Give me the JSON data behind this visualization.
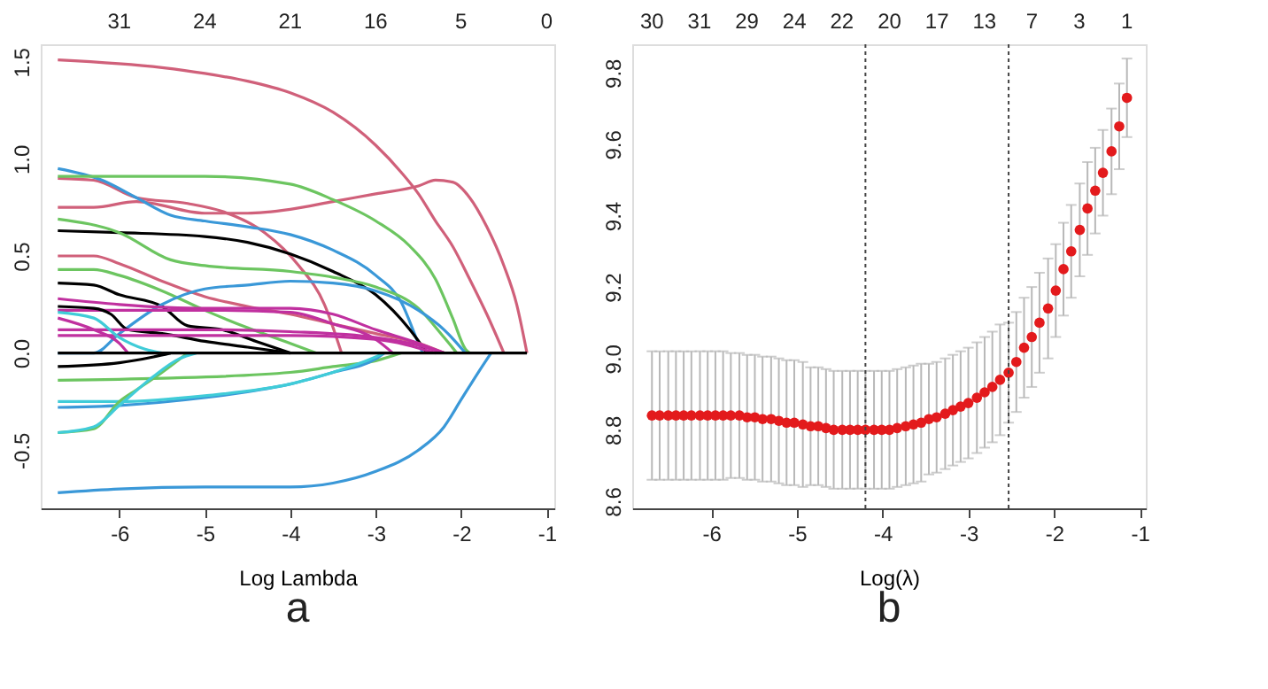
{
  "chart_data": [
    {
      "type": "line",
      "xlabel": "Log Lambda",
      "annotations": [
        "a",
        "31",
        "24",
        "21",
        "16",
        "5",
        "0"
      ],
      "xlim": [
        -6.92,
        -0.91
      ],
      "ylim": [
        -0.8,
        1.59
      ],
      "xticks": [
        -6,
        -5,
        -4,
        -3,
        -2,
        -1
      ],
      "yticks": [
        -0.5,
        {
          "value": 0,
          "label": "0.0"
        },
        0.5,
        {
          "value": 1,
          "label": "1.0"
        },
        1.5
      ],
      "grid": false,
      "line_style": "solid",
      "marker": "none",
      "series": [
        {
          "color": "#d0607a",
          "x": [
            -6.72,
            -5.5,
            -5,
            -4.5,
            -4,
            -3.5,
            -3,
            -2.7,
            -2.5,
            -2.3,
            -2.1,
            -1.9,
            -1.7,
            -1.5
          ],
          "values": [
            1.51,
            1.47,
            1.44,
            1.4,
            1.34,
            1.24,
            1.07,
            0.93,
            0.82,
            0.68,
            0.55,
            0.38,
            0.2,
            0
          ]
        },
        {
          "color": "#d0607a",
          "x": [
            -6.72,
            -6.3,
            -5.8,
            -5,
            -4.5,
            -4,
            -3.5,
            -3,
            -2.5,
            -2.3,
            -2.1,
            -1.9,
            -1.7,
            -1.5,
            -1.35,
            -1.23
          ],
          "values": [
            0.75,
            0.75,
            0.78,
            0.72,
            0.72,
            0.74,
            0.78,
            0.82,
            0.86,
            0.89,
            0.88,
            0.8,
            0.65,
            0.45,
            0.25,
            0
          ]
        },
        {
          "color": "#d0607a",
          "x": [
            -6.72,
            -6.3,
            -5.8,
            -5.2,
            -4.8,
            -4.3,
            -3.9,
            -3.6,
            -3.4
          ],
          "values": [
            0.9,
            0.89,
            0.8,
            0.77,
            0.73,
            0.62,
            0.45,
            0.25,
            0
          ]
        },
        {
          "color": "#3a98d8",
          "x": [
            -6.72,
            -6.2,
            -5.8,
            -5.4,
            -5,
            -4.5,
            -4,
            -3.5,
            -3,
            -2.7,
            -2.5,
            -2.45
          ],
          "values": [
            0.95,
            0.89,
            0.8,
            0.71,
            0.68,
            0.65,
            0.61,
            0.53,
            0.4,
            0.26,
            0.05,
            0
          ]
        },
        {
          "color": "#6cc560",
          "x": [
            -6.72,
            -6,
            -5,
            -4,
            -3.5,
            -3,
            -2.6,
            -2.3,
            -2.1,
            -1.95,
            -1.9
          ],
          "values": [
            0.91,
            0.91,
            0.91,
            0.87,
            0.79,
            0.68,
            0.55,
            0.38,
            0.18,
            0.02,
            0
          ]
        },
        {
          "color": "#000000",
          "x": [
            -6.72,
            -6,
            -5,
            -4.5,
            -4,
            -3.5,
            -3,
            -2.6,
            -2.4
          ],
          "values": [
            0.63,
            0.62,
            0.6,
            0.57,
            0.51,
            0.42,
            0.3,
            0.12,
            0
          ]
        },
        {
          "color": "#6cc560",
          "x": [
            -6.72,
            -6,
            -5.4,
            -5,
            -4,
            -3.5,
            -3,
            -2.5,
            -2.2,
            -2.05
          ],
          "values": [
            0.69,
            0.62,
            0.48,
            0.45,
            0.42,
            0.39,
            0.34,
            0.23,
            0.08,
            0
          ]
        },
        {
          "color": "#d0607a",
          "x": [
            -6.72,
            -6.3,
            -6,
            -5.5,
            -5,
            -4.5,
            -4,
            -3.5,
            -3,
            -2.5,
            -2.2
          ],
          "values": [
            0.5,
            0.5,
            0.46,
            0.37,
            0.29,
            0.24,
            0.2,
            0.15,
            0.1,
            0.05,
            0
          ]
        },
        {
          "color": "#6cc560",
          "x": [
            -6.72,
            -6.3,
            -6,
            -5.5,
            -5,
            -4.5,
            -4,
            -3.7
          ],
          "values": [
            0.43,
            0.43,
            0.4,
            0.32,
            0.22,
            0.13,
            0.05,
            0
          ]
        },
        {
          "color": "#000000",
          "x": [
            -6.72,
            -6.3,
            -6,
            -5.5,
            -5.2,
            -4.8,
            -4.4,
            -4
          ],
          "values": [
            0.36,
            0.35,
            0.3,
            0.24,
            0.14,
            0.12,
            0.06,
            0
          ]
        },
        {
          "color": "#3a98d8",
          "x": [
            -6.72,
            -6.3,
            -6,
            -5.5,
            -5,
            -4.5,
            -4,
            -3.5,
            -3,
            -2.5,
            -2.2,
            -1.95
          ],
          "values": [
            0,
            0,
            0.1,
            0.25,
            0.33,
            0.35,
            0.37,
            0.36,
            0.32,
            0.22,
            0.12,
            0
          ]
        },
        {
          "color": "#c0309f",
          "x": [
            -6.72,
            -6,
            -5,
            -4,
            -3.5,
            -3,
            -2.5,
            -2.2
          ],
          "values": [
            0.28,
            0.25,
            0.23,
            0.23,
            0.2,
            0.12,
            0.05,
            0
          ]
        },
        {
          "color": "#c0309f",
          "x": [
            -6.72,
            -5,
            -4,
            -3.5,
            -3,
            -2.8
          ],
          "values": [
            0.22,
            0.22,
            0.21,
            0.15,
            0.07,
            0
          ]
        },
        {
          "color": "#000000",
          "x": [
            -6.72,
            -6.3,
            -6.1,
            -5.9,
            -5.5,
            -5,
            -4.5,
            -4
          ],
          "values": [
            0.24,
            0.23,
            0.2,
            0.12,
            0.1,
            0.06,
            0.03,
            0
          ]
        },
        {
          "color": "#c0309f",
          "x": [
            -6.72,
            -5,
            -4,
            -3,
            -2.5,
            -2.2
          ],
          "values": [
            0.12,
            0.12,
            0.11,
            0.08,
            0.04,
            0
          ]
        },
        {
          "color": "#c0309f",
          "x": [
            -6.72,
            -4,
            -3,
            -2.3
          ],
          "values": [
            0.09,
            0.09,
            0.07,
            0
          ]
        },
        {
          "color": "#c0309f",
          "x": [
            -6.72,
            -6.3,
            -6,
            -5.9
          ],
          "values": [
            0.18,
            0.12,
            0.05,
            0
          ]
        },
        {
          "color": "#40ccd8",
          "x": [
            -6.72,
            -6.3,
            -6,
            -5.7,
            -5.5
          ],
          "values": [
            0.21,
            0.18,
            0.08,
            0.02,
            0
          ]
        },
        {
          "color": "#000000",
          "x": [
            -6.72,
            -6,
            -5.6,
            -5.4
          ],
          "values": [
            -0.07,
            -0.05,
            -0.02,
            0
          ]
        },
        {
          "color": "#6cc560",
          "x": [
            -6.72,
            -5.5,
            -4,
            -3.5,
            -3,
            -2.7
          ],
          "values": [
            -0.14,
            -0.13,
            -0.1,
            -0.07,
            -0.04,
            0
          ]
        },
        {
          "color": "#3a98d8",
          "x": [
            -6.72,
            -6,
            -5,
            -4.5,
            -4,
            -3.5,
            -3,
            -2.9
          ],
          "values": [
            -0.28,
            -0.27,
            -0.23,
            -0.2,
            -0.16,
            -0.1,
            -0.03,
            0
          ]
        },
        {
          "color": "#40ccd8",
          "x": [
            -6.72,
            -6,
            -5,
            -4,
            -3.5,
            -3,
            -2.9
          ],
          "values": [
            -0.25,
            -0.25,
            -0.22,
            -0.16,
            -0.1,
            -0.02,
            0
          ]
        },
        {
          "color": "#6cc560",
          "x": [
            -6.72,
            -6.3,
            -6,
            -5.8,
            -5.5,
            -5.2
          ],
          "values": [
            -0.41,
            -0.39,
            -0.25,
            -0.19,
            -0.1,
            0
          ]
        },
        {
          "color": "#40ccd8",
          "x": [
            -6.72,
            -6.3,
            -6,
            -5.6,
            -5.3,
            -5.1
          ],
          "values": [
            -0.41,
            -0.38,
            -0.27,
            -0.12,
            -0.03,
            0
          ]
        },
        {
          "color": "#3a98d8",
          "x": [
            -6.72,
            -6,
            -5,
            -4,
            -3.5,
            -3,
            -2.5,
            -2.2,
            -2,
            -1.8,
            -1.65
          ],
          "values": [
            -0.72,
            -0.7,
            -0.69,
            -0.69,
            -0.67,
            -0.61,
            -0.5,
            -0.38,
            -0.24,
            -0.1,
            0
          ]
        },
        {
          "color": "#000000",
          "x": [
            -6.72,
            -1.23
          ],
          "values": [
            0,
            0
          ]
        }
      ]
    },
    {
      "type": "scatter",
      "xlabel": "Log(λ)",
      "annotations": [
        "b",
        "30",
        "31",
        "29",
        "24",
        "22",
        "20",
        "17",
        "13",
        "7",
        "3",
        "1"
      ],
      "xlim": [
        -6.92,
        -0.93
      ],
      "ylim": [
        8.58,
        9.88
      ],
      "xticks": [
        -6,
        -5,
        -4,
        -3,
        -2,
        -1
      ],
      "yticks": [
        8.6,
        8.8,
        {
          "value": 9,
          "label": "9.0"
        },
        9.2,
        9.4,
        9.6,
        9.8
      ],
      "grid": false,
      "marker": "circle",
      "x": [
        -6.69,
        -6.6,
        -6.5,
        -6.41,
        -6.32,
        -6.23,
        -6.13,
        -6.04,
        -5.95,
        -5.86,
        -5.77,
        -5.67,
        -5.58,
        -5.49,
        -5.4,
        -5.3,
        -5.21,
        -5.12,
        -5.03,
        -4.93,
        -4.84,
        -4.75,
        -4.66,
        -4.57,
        -4.47,
        -4.38,
        -4.29,
        -4.2,
        -4.1,
        -4.01,
        -3.92,
        -3.83,
        -3.73,
        -3.64,
        -3.55,
        -3.46,
        -3.37,
        -3.27,
        -3.18,
        -3.09,
        -3,
        -2.9,
        -2.81,
        -2.72,
        -2.63,
        -2.53,
        -2.44,
        -2.35,
        -2.26,
        -2.17,
        -2.07,
        -1.98,
        -1.89,
        -1.8,
        -1.7,
        -1.61,
        -1.52,
        -1.43,
        -1.33,
        -1.24,
        -1.15
      ],
      "series": [
        {
          "color": "#e31a1c",
          "values": [
            8.84,
            8.84,
            8.84,
            8.84,
            8.84,
            8.84,
            8.84,
            8.84,
            8.84,
            8.84,
            8.84,
            8.84,
            8.835,
            8.835,
            8.83,
            8.83,
            8.825,
            8.82,
            8.82,
            8.815,
            8.81,
            8.81,
            8.805,
            8.8,
            8.8,
            8.8,
            8.8,
            8.8,
            8.8,
            8.8,
            8.8,
            8.805,
            8.81,
            8.815,
            8.82,
            8.83,
            8.835,
            8.845,
            8.855,
            8.865,
            8.875,
            8.89,
            8.905,
            8.92,
            8.94,
            8.96,
            8.99,
            9.03,
            9.06,
            9.1,
            9.14,
            9.19,
            9.25,
            9.3,
            9.36,
            9.42,
            9.47,
            9.52,
            9.58,
            9.65,
            9.73
          ],
          "errors": [
            0.18,
            0.18,
            0.18,
            0.18,
            0.18,
            0.18,
            0.18,
            0.18,
            0.18,
            0.18,
            0.175,
            0.175,
            0.175,
            0.175,
            0.175,
            0.175,
            0.175,
            0.175,
            0.175,
            0.175,
            0.165,
            0.165,
            0.165,
            0.165,
            0.165,
            0.165,
            0.165,
            0.165,
            0.165,
            0.165,
            0.165,
            0.165,
            0.165,
            0.165,
            0.165,
            0.155,
            0.155,
            0.155,
            0.155,
            0.155,
            0.155,
            0.155,
            0.155,
            0.155,
            0.155,
            0.14,
            0.14,
            0.14,
            0.14,
            0.14,
            0.14,
            0.13,
            0.13,
            0.13,
            0.13,
            0.13,
            0.12,
            0.12,
            0.12,
            0.12,
            0.11
          ]
        }
      ],
      "ref_lines": [
        {
          "axis": "x",
          "value": -4.2,
          "line_style": "dotted",
          "color": "#444444"
        },
        {
          "axis": "x",
          "value": -2.53,
          "line_style": "dotted",
          "color": "#444444"
        }
      ]
    }
  ]
}
